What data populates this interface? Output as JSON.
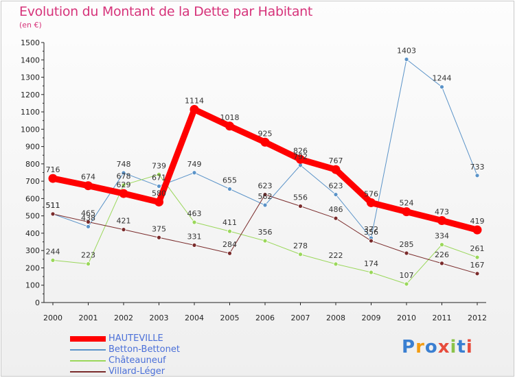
{
  "title": "Evolution du Montant de la Dette par Habitant",
  "subtitle": "(en €)",
  "logo_text": "Proxiti",
  "colors": {
    "title": "#d6337a",
    "axis": "#222222",
    "legend_text": "#4a6fd8"
  },
  "chart_data": {
    "type": "line",
    "x": [
      "2000",
      "2001",
      "2002",
      "2003",
      "2004",
      "2005",
      "2006",
      "2007",
      "2008",
      "2009",
      "2010",
      "2011",
      "2012"
    ],
    "ylim": [
      0,
      1500
    ],
    "yticks": [
      0,
      100,
      200,
      300,
      400,
      500,
      600,
      700,
      800,
      900,
      1000,
      1100,
      1200,
      1300,
      1400,
      1500
    ],
    "grid": false,
    "legend_position": "bottom-left",
    "series": [
      {
        "name": "HAUTEVILLE",
        "color": "#ff0000",
        "width": 9,
        "marker": 6.5,
        "values": [
          716,
          674,
          629,
          580,
          1114,
          1018,
          925,
          826,
          767,
          576,
          524,
          473,
          419
        ]
      },
      {
        "name": "Betton-Bettonet",
        "color": "#5a93c8",
        "width": 1,
        "marker": 3,
        "values": [
          511,
          438,
          748,
          671,
          749,
          655,
          562,
          792,
          623,
          372,
          1403,
          1244,
          733
        ]
      },
      {
        "name": "Châteauneuf",
        "color": "#9ad75a",
        "width": 1,
        "marker": 3,
        "values": [
          244,
          223,
          678,
          739,
          463,
          411,
          356,
          278,
          222,
          174,
          107,
          334,
          261
        ]
      },
      {
        "name": "Villard-Léger",
        "color": "#7a2b2b",
        "width": 1,
        "marker": 3,
        "values": [
          511,
          465,
          421,
          375,
          331,
          284,
          623,
          556,
          486,
          356,
          285,
          226,
          167
        ]
      }
    ],
    "data_labels": [
      {
        "series": 0,
        "labels": [
          "716",
          "674",
          "629",
          "580",
          "1114",
          "1018",
          "925",
          "826",
          "767",
          "576",
          "524",
          "473",
          "419"
        ]
      },
      {
        "series": 1,
        "labels": [
          "511",
          "438",
          "748",
          "671",
          "749",
          "655",
          "562",
          "792",
          "623",
          "372",
          "1403",
          "1244",
          "733"
        ]
      },
      {
        "series": 2,
        "labels": [
          "244",
          "223",
          "678",
          "739",
          "463",
          "411",
          "356",
          "278",
          "222",
          "174",
          "107",
          "334",
          "261"
        ]
      },
      {
        "series": 3,
        "labels": [
          "511",
          "465",
          "421",
          "375",
          "331",
          "284",
          "623",
          "556",
          "486",
          "356",
          "285",
          "226",
          "167"
        ]
      }
    ]
  }
}
